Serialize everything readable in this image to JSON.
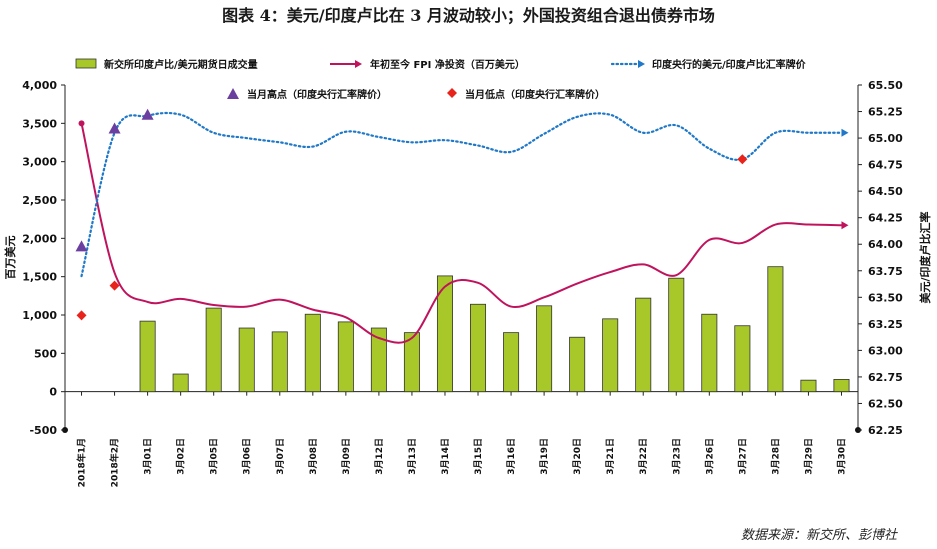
{
  "title": "图表 4：美元/印度卢比在 3 月波动较小；外国投资组合退出债券市场",
  "source": "数据来源：新交所、彭博社",
  "colors": {
    "bar": "#a8c82a",
    "bar_stroke": "#333333",
    "fpi_line": "#c0135d",
    "usd_inr": "#1f78c8",
    "high": "#6b3fa0",
    "low": "#e8231b"
  },
  "chart_data": {
    "type": "bar",
    "categories": [
      "2018年1月",
      "2018年2月",
      "3月01日",
      "3月02日",
      "3月05日",
      "3月06日",
      "3月07日",
      "3月08日",
      "3月09日",
      "3月12日",
      "3月13日",
      "3月14日",
      "3月15日",
      "3月16日",
      "3月19日",
      "3月20日",
      "3月21日",
      "3月22日",
      "3月23日",
      "3月26日",
      "3月27日",
      "3月28日",
      "3月29日",
      "3月30日"
    ],
    "left_axis": {
      "label": "百万美元",
      "ticks": [
        "-500",
        "0",
        "500",
        "1,000",
        "1,500",
        "2,000",
        "2,500",
        "3,000",
        "3,500",
        "4,000"
      ],
      "range": [
        -500,
        4000
      ]
    },
    "right_axis": {
      "label": "美元/印度卢比汇率",
      "ticks": [
        "62.25",
        "62.50",
        "62.75",
        "63.00",
        "63.25",
        "63.50",
        "63.75",
        "64.00",
        "64.25",
        "64.50",
        "64.75",
        "65.00",
        "65.25",
        "65.50"
      ],
      "range": [
        62.25,
        65.5
      ]
    },
    "series": [
      {
        "name": "新交所印度卢比/美元期货日成交量",
        "type": "bar",
        "axis": "left",
        "values": [
          null,
          null,
          920,
          230,
          1090,
          830,
          780,
          1010,
          910,
          830,
          770,
          1510,
          1140,
          770,
          1120,
          710,
          950,
          1220,
          1480,
          1010,
          860,
          1630,
          150,
          160
        ]
      },
      {
        "name": "年初至今 FPI 净投资（百万美元）",
        "type": "line",
        "axis": "left",
        "values": [
          3500,
          1550,
          1170,
          1210,
          1130,
          1110,
          1200,
          1070,
          970,
          700,
          700,
          1370,
          1420,
          1110,
          1230,
          1410,
          1560,
          1660,
          1520,
          1980,
          1940,
          2180,
          2180,
          2170
        ]
      },
      {
        "name": "印度央行的美元/印度卢比汇率牌价",
        "type": "line",
        "axis": "right",
        "values": [
          63.7,
          65.05,
          65.21,
          65.22,
          65.05,
          65.0,
          64.96,
          64.92,
          65.06,
          65.01,
          64.96,
          64.98,
          64.93,
          64.87,
          65.04,
          65.2,
          65.22,
          65.05,
          65.12,
          64.9,
          64.8,
          65.05,
          65.05,
          65.05
        ]
      },
      {
        "name": "当月高点（印度央行汇率牌价）",
        "type": "scatter",
        "axis": "right",
        "points": [
          {
            "category": "2018年1月",
            "value": 63.98
          },
          {
            "category": "2018年2月",
            "value": 65.09
          },
          {
            "category": "3月01日",
            "value": 65.22
          }
        ]
      },
      {
        "name": "当月低点（印度央行汇率牌价）",
        "type": "scatter",
        "axis": "right",
        "points": [
          {
            "category": "2018年1月",
            "value": 63.33
          },
          {
            "category": "2018年2月",
            "value": 63.61
          },
          {
            "category": "3月27日",
            "value": 64.8
          }
        ]
      }
    ]
  }
}
